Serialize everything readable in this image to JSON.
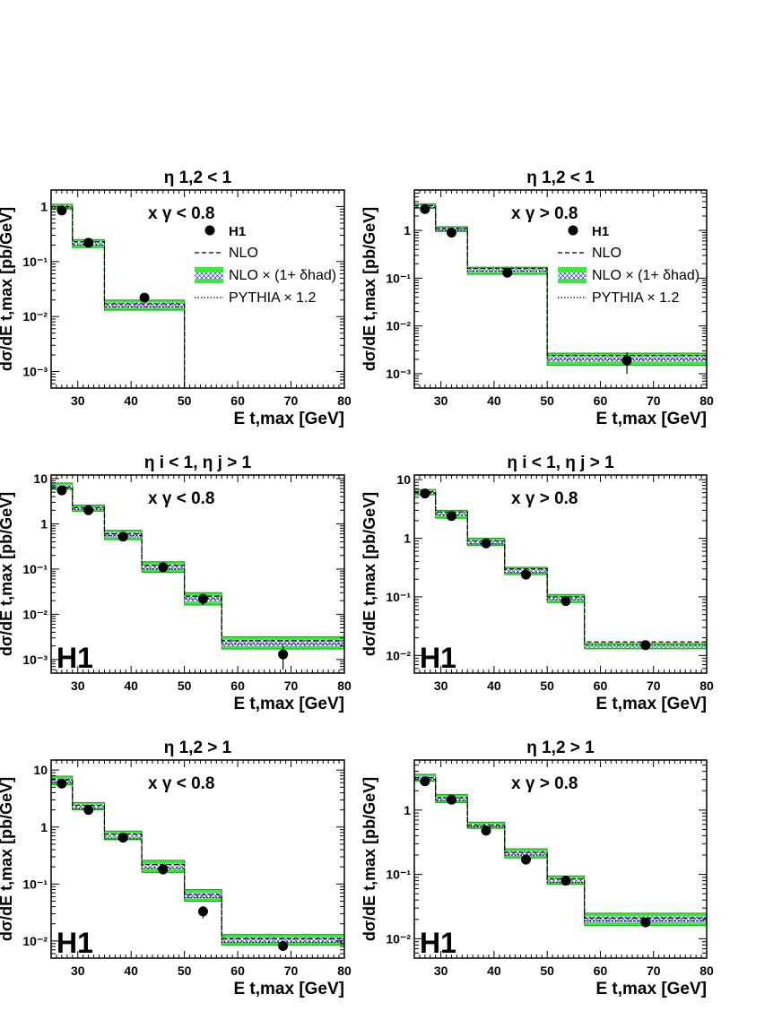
{
  "chart_data": [
    {
      "type": "line",
      "title": "η 1,2 < 1",
      "condition": "x γ < 0.8",
      "xlabel": "E t,max [GeV]",
      "ylabel": "dσ/dE t,max [pb/GeV]",
      "x_ticks": [
        "30",
        "40",
        "50",
        "60",
        "70",
        "80"
      ],
      "y_ticks": [
        "10⁻³",
        "10⁻²",
        "10⁻¹",
        "1"
      ],
      "xlim": [
        25,
        80
      ],
      "ylim": [
        0.0005,
        2
      ],
      "y_scale": "log",
      "bin_edges": [
        25,
        29,
        35,
        50
      ],
      "series": [
        {
          "name": "H1",
          "x": [
            27,
            32,
            42.5
          ],
          "values": [
            0.85,
            0.22,
            0.022
          ],
          "err": [
            0.1,
            0.025,
            0.003
          ]
        },
        {
          "name": "NLO",
          "values": [
            1.0,
            0.23,
            0.017
          ]
        },
        {
          "name": "NLO × (1+ δhad)",
          "lo": [
            0.9,
            0.18,
            0.013
          ],
          "hi": [
            1.1,
            0.25,
            0.02
          ]
        },
        {
          "name": "PYTHIA × 1.2",
          "values": [
            0.95,
            0.2,
            0.015
          ]
        }
      ],
      "label_h1": false,
      "legend": true,
      "legend_position": "top-right"
    },
    {
      "type": "line",
      "title": "η 1,2 < 1",
      "condition": "x γ > 0.8",
      "xlabel": "E t,max [GeV]",
      "ylabel": "dσ/dE t,max [pb/GeV]",
      "x_ticks": [
        "30",
        "40",
        "50",
        "60",
        "70",
        "80"
      ],
      "y_ticks": [
        "10⁻³",
        "10⁻²",
        "10⁻¹",
        "1"
      ],
      "xlim": [
        25,
        80
      ],
      "ylim": [
        0.0005,
        7
      ],
      "y_scale": "log",
      "bin_edges": [
        25,
        29,
        35,
        50,
        80
      ],
      "series": [
        {
          "name": "H1",
          "x": [
            27,
            32,
            42.5,
            65
          ],
          "values": [
            2.8,
            0.9,
            0.13,
            0.0019
          ],
          "err": [
            0.3,
            0.1,
            0.015,
            0.0009
          ]
        },
        {
          "name": "NLO",
          "values": [
            3.3,
            1.1,
            0.16,
            0.0024
          ]
        },
        {
          "name": "NLO × (1+ δhad)",
          "lo": [
            2.9,
            0.95,
            0.12,
            0.0015
          ],
          "hi": [
            3.6,
            1.2,
            0.17,
            0.0027
          ]
        },
        {
          "name": "PYTHIA × 1.2",
          "values": [
            3.0,
            1.0,
            0.14,
            0.002
          ]
        }
      ],
      "label_h1": false,
      "legend": true,
      "legend_position": "top-right"
    },
    {
      "type": "line",
      "title": "η i < 1,  η j > 1",
      "condition": "x γ < 0.8",
      "xlabel": "E t,max [GeV]",
      "ylabel": "dσ/dE t,max [pb/GeV]",
      "x_ticks": [
        "30",
        "40",
        "50",
        "60",
        "70",
        "80"
      ],
      "y_ticks": [
        "10⁻³",
        "10⁻²",
        "10⁻¹",
        "1",
        "10"
      ],
      "xlim": [
        25,
        80
      ],
      "ylim": [
        0.0005,
        12
      ],
      "y_scale": "log",
      "bin_edges": [
        25,
        29,
        35,
        42,
        50,
        57,
        80
      ],
      "series": [
        {
          "name": "H1",
          "x": [
            27,
            32,
            38.5,
            46,
            53.5,
            68.5
          ],
          "values": [
            5.5,
            2.0,
            0.52,
            0.11,
            0.022,
            0.0013
          ],
          "err": [
            0.6,
            0.2,
            0.06,
            0.012,
            0.006,
            0.0007
          ]
        },
        {
          "name": "NLO",
          "values": [
            6.5,
            2.3,
            0.6,
            0.12,
            0.025,
            0.0026
          ]
        },
        {
          "name": "NLO × (1+ δhad)",
          "lo": [
            5.8,
            1.9,
            0.45,
            0.085,
            0.016,
            0.0017
          ],
          "hi": [
            8.0,
            2.6,
            0.72,
            0.145,
            0.03,
            0.0032
          ]
        },
        {
          "name": "PYTHIA × 1.2",
          "values": [
            6.0,
            2.1,
            0.55,
            0.1,
            0.022,
            0.0022
          ]
        }
      ],
      "label_h1": true,
      "h1_text": "H1",
      "legend": false
    },
    {
      "type": "line",
      "title": "η i < 1,  η j > 1",
      "condition": "x γ > 0.8",
      "xlabel": "E t,max [GeV]",
      "ylabel": "dσ/dE t,max [pb/GeV]",
      "x_ticks": [
        "30",
        "40",
        "50",
        "60",
        "70",
        "80"
      ],
      "y_ticks": [
        "10⁻²",
        "10⁻¹",
        "1",
        "10"
      ],
      "xlim": [
        25,
        80
      ],
      "ylim": [
        0.005,
        12
      ],
      "y_scale": "log",
      "bin_edges": [
        25,
        29,
        35,
        42,
        50,
        57,
        80
      ],
      "series": [
        {
          "name": "H1",
          "x": [
            27,
            32,
            38.5,
            46,
            53.5,
            68.5
          ],
          "values": [
            5.8,
            2.4,
            0.82,
            0.24,
            0.085,
            0.015
          ],
          "err": [
            0.6,
            0.25,
            0.09,
            0.03,
            0.01,
            0.002
          ]
        },
        {
          "name": "NLO",
          "values": [
            6.2,
            2.8,
            0.9,
            0.3,
            0.1,
            0.017
          ]
        },
        {
          "name": "NLO × (1+ δhad)",
          "lo": [
            5.5,
            2.2,
            0.75,
            0.24,
            0.08,
            0.013
          ],
          "hi": [
            6.8,
            3.0,
            1.0,
            0.32,
            0.11,
            0.016
          ]
        },
        {
          "name": "PYTHIA × 1.2",
          "values": [
            5.9,
            2.5,
            0.8,
            0.26,
            0.09,
            0.015
          ]
        }
      ],
      "label_h1": true,
      "h1_text": "H1",
      "legend": false
    },
    {
      "type": "line",
      "title": "η 1,2 > 1",
      "condition": "x γ < 0.8",
      "xlabel": "E t,max [GeV]",
      "ylabel": "dσ/dE t,max [pb/GeV]",
      "x_ticks": [
        "30",
        "40",
        "50",
        "60",
        "70",
        "80"
      ],
      "y_ticks": [
        "10⁻²",
        "10⁻¹",
        "1",
        "10"
      ],
      "xlim": [
        25,
        80
      ],
      "ylim": [
        0.005,
        15
      ],
      "y_scale": "log",
      "bin_edges": [
        25,
        29,
        35,
        42,
        50,
        57,
        80
      ],
      "series": [
        {
          "name": "H1",
          "x": [
            27,
            32,
            38.5,
            46,
            53.5,
            68.5
          ],
          "values": [
            5.8,
            2.0,
            0.65,
            0.18,
            0.033,
            0.0082
          ],
          "err": [
            0.6,
            0.2,
            0.07,
            0.02,
            0.008,
            0.0015
          ]
        },
        {
          "name": "NLO",
          "values": [
            6.8,
            2.4,
            0.75,
            0.22,
            0.065,
            0.011
          ]
        },
        {
          "name": "NLO × (1+ δhad)",
          "lo": [
            5.5,
            2.0,
            0.6,
            0.16,
            0.05,
            0.0085
          ],
          "hi": [
            7.8,
            2.7,
            0.85,
            0.26,
            0.08,
            0.013
          ]
        },
        {
          "name": "PYTHIA × 1.2",
          "values": [
            6.0,
            2.1,
            0.62,
            0.19,
            0.058,
            0.0095
          ]
        }
      ],
      "label_h1": true,
      "h1_text": "H1",
      "legend": false
    },
    {
      "type": "line",
      "title": "η 1,2 > 1",
      "condition": "x γ > 0.8",
      "xlabel": "E t,max [GeV]",
      "ylabel": "dσ/dE t,max [pb/GeV]",
      "x_ticks": [
        "30",
        "40",
        "50",
        "60",
        "70",
        "80"
      ],
      "y_ticks": [
        "10⁻²",
        "10⁻¹",
        "1"
      ],
      "xlim": [
        25,
        80
      ],
      "ylim": [
        0.005,
        6
      ],
      "y_scale": "log",
      "bin_edges": [
        25,
        29,
        35,
        42,
        50,
        57,
        80
      ],
      "series": [
        {
          "name": "H1",
          "x": [
            27,
            32,
            38.5,
            46,
            53.5,
            68.5
          ],
          "values": [
            2.8,
            1.45,
            0.48,
            0.17,
            0.08,
            0.018
          ],
          "err": [
            0.3,
            0.15,
            0.05,
            0.02,
            0.009,
            0.0025
          ]
        },
        {
          "name": "NLO",
          "values": [
            3.2,
            1.55,
            0.58,
            0.22,
            0.085,
            0.021
          ]
        },
        {
          "name": "NLO × (1+ δhad)",
          "lo": [
            2.8,
            1.3,
            0.52,
            0.18,
            0.07,
            0.016
          ],
          "hi": [
            3.6,
            1.75,
            0.65,
            0.25,
            0.095,
            0.025
          ]
        },
        {
          "name": "PYTHIA × 1.2",
          "values": [
            3.0,
            1.4,
            0.55,
            0.2,
            0.075,
            0.019
          ]
        }
      ],
      "label_h1": true,
      "h1_text": "H1",
      "legend": false
    }
  ],
  "colors": {
    "band_fill": "#33ee33",
    "hatch": "#3333cc",
    "line": "#000000"
  }
}
